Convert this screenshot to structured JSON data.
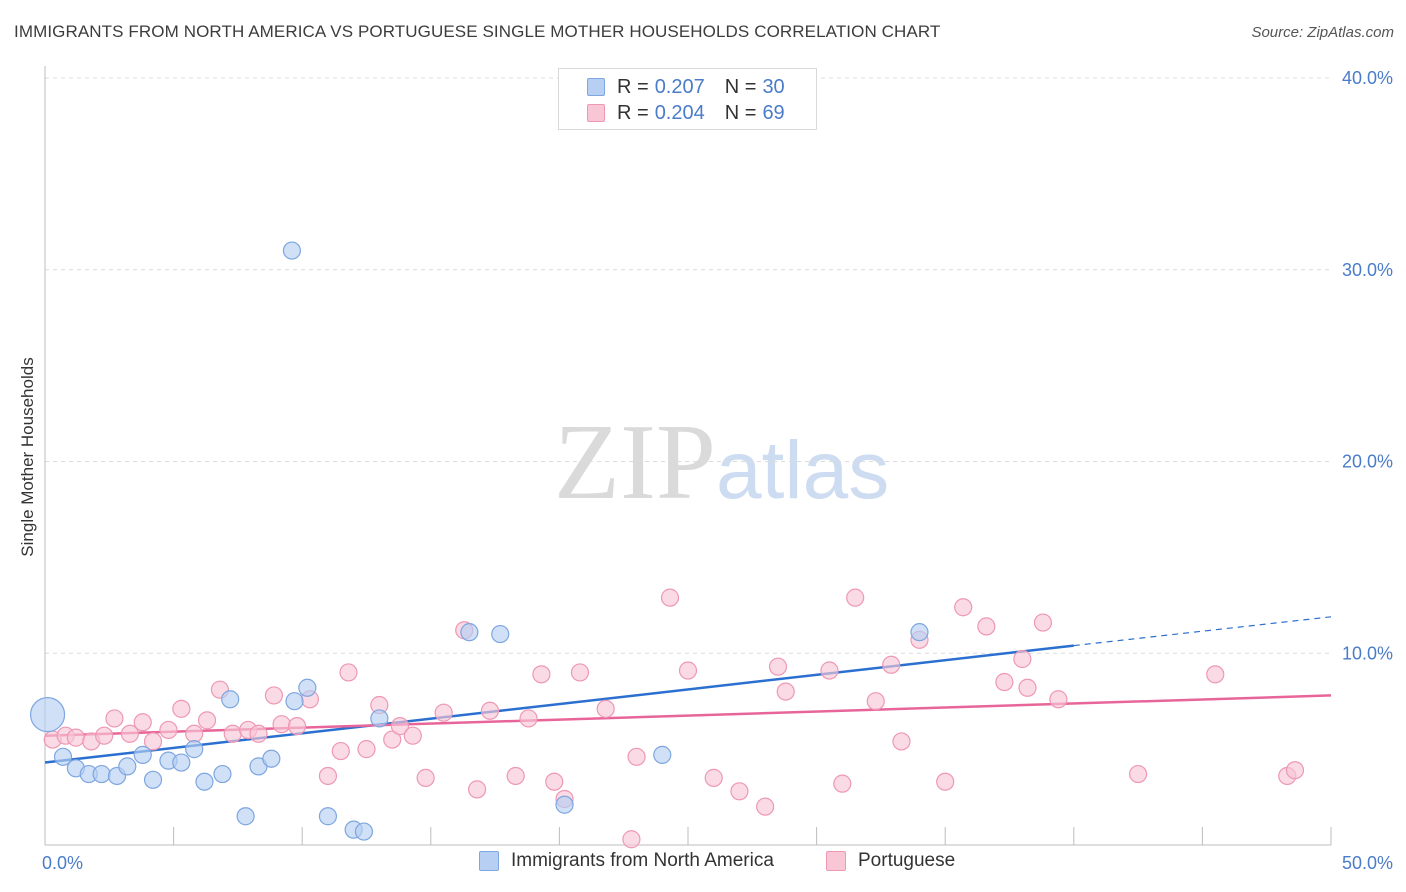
{
  "title": "IMMIGRANTS FROM NORTH AMERICA VS PORTUGUESE SINGLE MOTHER HOUSEHOLDS CORRELATION CHART",
  "source": "Source: ZipAtlas.com",
  "watermark": {
    "zip": "ZIP",
    "atlas": "atlas"
  },
  "colors": {
    "blue_fill": "#b6cff2",
    "blue_stroke": "#7ea6e0",
    "blue_line": "#2b6fd0",
    "pink_fill": "#f8c6d5",
    "pink_stroke": "#ee98b4",
    "pink_line": "#e8659a",
    "grid": "#dcdcdc",
    "tick_text": "#4a7cc9"
  },
  "legend": {
    "rows": [
      {
        "r_label": "R =",
        "r_value": "0.207",
        "n_label": "N =",
        "n_value": "30"
      },
      {
        "r_label": "R =",
        "r_value": "0.204",
        "n_label": "N =",
        "n_value": "69"
      }
    ]
  },
  "chart_data": {
    "type": "scatter",
    "title": "IMMIGRANTS FROM NORTH AMERICA VS PORTUGUESE SINGLE MOTHER HOUSEHOLDS CORRELATION CHART",
    "xlabel": "",
    "ylabel": "Single Mother Households",
    "xlim": [
      0,
      50
    ],
    "ylim": [
      0,
      40
    ],
    "x_tick_labels": [
      "0.0%",
      "50.0%"
    ],
    "y_ticks": [
      10,
      20,
      30,
      40
    ],
    "y_tick_labels": [
      "10.0%",
      "20.0%",
      "30.0%",
      "40.0%"
    ],
    "grid": true,
    "legend_position": "bottom",
    "series": [
      {
        "name": "Immigrants from North America",
        "color": "#b6cff2",
        "points": [
          [
            0.1,
            6.8
          ],
          [
            0.7,
            4.6
          ],
          [
            1.2,
            4.0
          ],
          [
            1.7,
            3.7
          ],
          [
            2.2,
            3.7
          ],
          [
            2.8,
            3.6
          ],
          [
            3.2,
            4.1
          ],
          [
            3.8,
            4.7
          ],
          [
            4.2,
            3.4
          ],
          [
            4.8,
            4.4
          ],
          [
            5.3,
            4.3
          ],
          [
            5.8,
            5.0
          ],
          [
            6.2,
            3.3
          ],
          [
            6.9,
            3.7
          ],
          [
            7.2,
            7.6
          ],
          [
            7.8,
            1.5
          ],
          [
            8.3,
            4.1
          ],
          [
            8.8,
            4.5
          ],
          [
            9.6,
            31.0
          ],
          [
            9.7,
            7.5
          ],
          [
            10.2,
            8.2
          ],
          [
            11.0,
            1.5
          ],
          [
            12.0,
            0.8
          ],
          [
            12.4,
            0.7
          ],
          [
            13.0,
            6.6
          ],
          [
            16.5,
            11.1
          ],
          [
            17.7,
            11.0
          ],
          [
            20.2,
            2.1
          ],
          [
            24.0,
            4.7
          ],
          [
            34.0,
            11.1
          ]
        ],
        "trend": {
          "x": [
            0,
            40
          ],
          "y": [
            4.3,
            10.4
          ]
        },
        "trend_dashed": {
          "x": [
            40,
            50
          ],
          "y": [
            10.4,
            11.9
          ]
        }
      },
      {
        "name": "Portuguese",
        "color": "#f8c6d5",
        "points": [
          [
            0.3,
            5.5
          ],
          [
            0.8,
            5.7
          ],
          [
            1.2,
            5.6
          ],
          [
            1.8,
            5.4
          ],
          [
            2.3,
            5.7
          ],
          [
            2.7,
            6.6
          ],
          [
            3.3,
            5.8
          ],
          [
            3.8,
            6.4
          ],
          [
            4.2,
            5.4
          ],
          [
            4.8,
            6.0
          ],
          [
            5.3,
            7.1
          ],
          [
            5.8,
            5.8
          ],
          [
            6.3,
            6.5
          ],
          [
            6.8,
            8.1
          ],
          [
            7.3,
            5.8
          ],
          [
            7.9,
            6.0
          ],
          [
            8.3,
            5.8
          ],
          [
            8.9,
            7.8
          ],
          [
            9.2,
            6.3
          ],
          [
            9.8,
            6.2
          ],
          [
            10.3,
            7.6
          ],
          [
            11.0,
            3.6
          ],
          [
            11.5,
            4.9
          ],
          [
            11.8,
            9.0
          ],
          [
            12.5,
            5.0
          ],
          [
            13.0,
            7.3
          ],
          [
            13.5,
            5.5
          ],
          [
            13.8,
            6.2
          ],
          [
            14.3,
            5.7
          ],
          [
            14.8,
            3.5
          ],
          [
            15.5,
            6.9
          ],
          [
            16.3,
            11.2
          ],
          [
            16.8,
            2.9
          ],
          [
            17.3,
            7.0
          ],
          [
            18.3,
            3.6
          ],
          [
            18.8,
            6.6
          ],
          [
            19.3,
            8.9
          ],
          [
            19.8,
            3.3
          ],
          [
            20.2,
            2.4
          ],
          [
            20.8,
            9.0
          ],
          [
            21.8,
            7.1
          ],
          [
            22.8,
            0.3
          ],
          [
            23.0,
            4.6
          ],
          [
            24.3,
            12.9
          ],
          [
            25.0,
            9.1
          ],
          [
            26.0,
            3.5
          ],
          [
            27.0,
            2.8
          ],
          [
            28.0,
            2.0
          ],
          [
            28.5,
            9.3
          ],
          [
            28.8,
            8.0
          ],
          [
            30.5,
            9.1
          ],
          [
            31.0,
            3.2
          ],
          [
            31.5,
            12.9
          ],
          [
            32.3,
            7.5
          ],
          [
            32.9,
            9.4
          ],
          [
            33.3,
            5.4
          ],
          [
            34.0,
            10.7
          ],
          [
            35.0,
            3.3
          ],
          [
            35.7,
            12.4
          ],
          [
            36.6,
            11.4
          ],
          [
            37.3,
            8.5
          ],
          [
            38.0,
            9.7
          ],
          [
            38.2,
            8.2
          ],
          [
            38.8,
            11.6
          ],
          [
            39.4,
            7.6
          ],
          [
            42.5,
            3.7
          ],
          [
            45.5,
            8.9
          ],
          [
            48.3,
            3.6
          ],
          [
            48.6,
            3.9
          ]
        ],
        "trend": {
          "x": [
            0,
            50
          ],
          "y": [
            5.7,
            7.8
          ]
        }
      }
    ]
  }
}
